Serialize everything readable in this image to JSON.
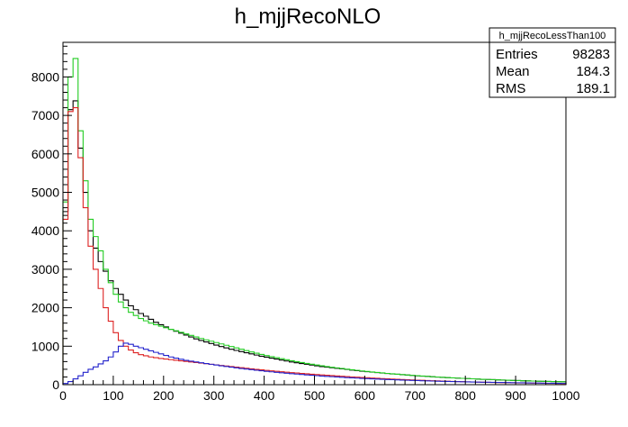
{
  "chart_data": {
    "type": "histogram",
    "title": "h_mjjRecoNLO",
    "xlabel": "",
    "ylabel": "",
    "xlim": [
      0,
      1000
    ],
    "ylim": [
      0,
      8900
    ],
    "bin_width": 10,
    "x_ticks": [
      0,
      100,
      200,
      300,
      400,
      500,
      600,
      700,
      800,
      900,
      1000
    ],
    "y_ticks": [
      0,
      1000,
      2000,
      3000,
      4000,
      5000,
      6000,
      7000,
      8000
    ],
    "grid": false,
    "stats_box": {
      "name": "h_mjjRecoLessThan100",
      "rows": [
        {
          "label": "Entries",
          "value": "98283"
        },
        {
          "label": "Mean",
          "value": "184.3"
        },
        {
          "label": "RMS",
          "value": "189.1"
        }
      ]
    },
    "series": [
      {
        "color": "#000000",
        "values": [
          4500,
          7150,
          7380,
          6150,
          5000,
          4000,
          3550,
          3200,
          2950,
          2700,
          2500,
          2350,
          2200,
          2050,
          1950,
          1850,
          1780,
          1700,
          1620,
          1560,
          1500,
          1440,
          1390,
          1340,
          1290,
          1240,
          1190,
          1150,
          1110,
          1070,
          1030,
          990,
          955,
          920,
          890,
          860,
          830,
          800,
          770,
          740,
          715,
          690,
          665,
          640,
          615,
          590,
          570,
          550,
          530,
          510,
          490,
          470,
          455,
          440,
          425,
          410,
          395,
          380,
          365,
          350,
          338,
          326,
          314,
          302,
          290,
          280,
          270,
          260,
          250,
          240,
          230,
          222,
          214,
          206,
          198,
          190,
          182,
          176,
          170,
          164,
          158,
          152,
          146,
          140,
          135,
          130,
          125,
          120,
          115,
          110,
          106,
          102,
          98,
          94,
          90,
          86,
          83,
          80,
          77,
          74
        ]
      },
      {
        "color": "#22cc22",
        "values": [
          4750,
          8000,
          8480,
          6600,
          5300,
          4300,
          3850,
          3480,
          3000,
          2650,
          2350,
          2150,
          2000,
          1880,
          1800,
          1720,
          1660,
          1600,
          1560,
          1520,
          1480,
          1440,
          1400,
          1360,
          1320,
          1280,
          1240,
          1200,
          1165,
          1130,
          1095,
          1060,
          1025,
          990,
          955,
          920,
          885,
          850,
          818,
          786,
          756,
          728,
          700,
          674,
          648,
          622,
          598,
          575,
          553,
          531,
          510,
          490,
          471,
          453,
          436,
          419,
          403,
          387,
          372,
          357,
          343,
          330,
          317,
          305,
          293,
          282,
          271,
          261,
          251,
          241,
          232,
          223,
          215,
          207,
          199,
          191,
          184,
          177,
          170,
          164,
          158,
          152,
          146,
          140,
          135,
          130,
          125,
          120,
          115,
          110,
          106,
          102,
          98,
          94,
          90,
          86,
          83,
          80,
          77,
          74
        ]
      },
      {
        "color": "#dd2222",
        "values": [
          4300,
          7100,
          7200,
          5900,
          4600,
          3600,
          3000,
          2500,
          2000,
          1650,
          1350,
          1150,
          1000,
          900,
          830,
          780,
          750,
          720,
          700,
          680,
          665,
          650,
          635,
          620,
          605,
          590,
          575,
          560,
          545,
          530,
          515,
          500,
          485,
          470,
          455,
          440,
          426,
          412,
          398,
          385,
          372,
          360,
          348,
          336,
          324,
          313,
          302,
          292,
          282,
          272,
          262,
          253,
          244,
          235,
          226,
          218,
          210,
          202,
          194,
          186,
          179,
          172,
          165,
          158,
          152,
          146,
          140,
          134,
          128,
          122,
          117,
          112,
          107,
          102,
          97,
          93,
          89,
          85,
          81,
          77,
          73,
          70,
          67,
          64,
          61,
          58,
          55,
          52,
          50,
          48,
          46,
          44,
          42,
          40,
          38,
          36,
          34,
          32,
          30,
          28
        ]
      },
      {
        "color": "#2222cc",
        "values": [
          30,
          80,
          150,
          230,
          320,
          400,
          460,
          540,
          620,
          720,
          850,
          1000,
          1080,
          1050,
          1000,
          960,
          920,
          880,
          840,
          800,
          760,
          720,
          690,
          660,
          630,
          610,
          590,
          570,
          550,
          530,
          510,
          490,
          472,
          455,
          438,
          421,
          405,
          390,
          375,
          361,
          347,
          334,
          321,
          309,
          297,
          286,
          275,
          264,
          254,
          244,
          234,
          225,
          216,
          208,
          200,
          192,
          184,
          177,
          170,
          163,
          157,
          151,
          145,
          139,
          134,
          129,
          124,
          119,
          114,
          110,
          106,
          102,
          98,
          94,
          90,
          87,
          84,
          81,
          78,
          75,
          72,
          69,
          66,
          64,
          62,
          60,
          58,
          56,
          54,
          52,
          50,
          48,
          46,
          44,
          42,
          40,
          38,
          36,
          34,
          32
        ]
      }
    ]
  }
}
